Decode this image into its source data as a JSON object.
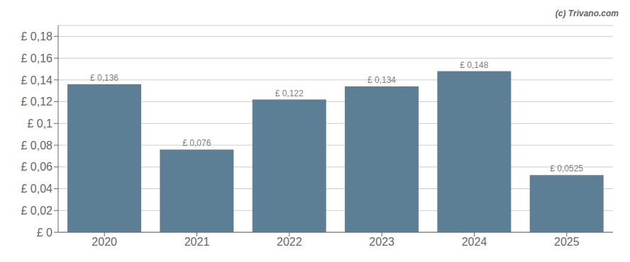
{
  "chart_data": {
    "type": "bar",
    "categories": [
      "2020",
      "2021",
      "2022",
      "2023",
      "2024",
      "2025"
    ],
    "values": [
      0.136,
      0.076,
      0.122,
      0.134,
      0.148,
      0.0525
    ],
    "value_labels": [
      "£ 0,136",
      "£ 0,076",
      "£ 0,122",
      "£ 0,134",
      "£ 0,148",
      "£ 0,0525"
    ],
    "data_labels": true,
    "color": "#5d7f96",
    "ylim": [
      0,
      0.19
    ],
    "yticks": [
      {
        "value": 0,
        "label": "£ 0"
      },
      {
        "value": 0.02,
        "label": "£ 0,02"
      },
      {
        "value": 0.04,
        "label": "£ 0,04"
      },
      {
        "value": 0.06,
        "label": "£ 0,06"
      },
      {
        "value": 0.08,
        "label": "£ 0,08"
      },
      {
        "value": 0.1,
        "label": "£ 0,1"
      },
      {
        "value": 0.12,
        "label": "£ 0,12"
      },
      {
        "value": 0.14,
        "label": "£ 0,14"
      },
      {
        "value": 0.16,
        "label": "£ 0,16"
      },
      {
        "value": 0.18,
        "label": "£ 0,18"
      }
    ],
    "grid": true,
    "annotations": [
      "(c) Trivano.com"
    ]
  }
}
